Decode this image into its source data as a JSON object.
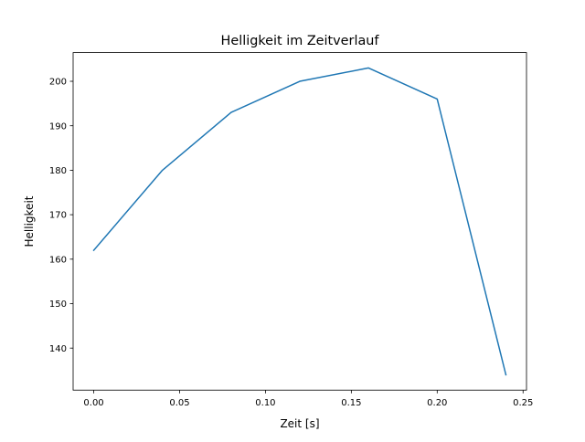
{
  "chart_data": {
    "type": "line",
    "title": "Helligkeit im Zeitverlauf",
    "xlabel": "Zeit [s]",
    "ylabel": "Helligkeit",
    "x": [
      0.0,
      0.04,
      0.08,
      0.12,
      0.16,
      0.2,
      0.24
    ],
    "series": [
      {
        "name": "Helligkeit",
        "values": [
          162,
          180,
          193,
          200,
          203,
          196,
          134
        ],
        "color": "#1f77b4"
      }
    ],
    "xlim": [
      -0.012,
      0.252
    ],
    "ylim": [
      130.55,
      206.45
    ],
    "xticks": [
      0.0,
      0.05,
      0.1,
      0.15,
      0.2,
      0.25
    ],
    "xtick_labels": [
      "0.00",
      "0.05",
      "0.10",
      "0.15",
      "0.20",
      "0.25"
    ],
    "yticks": [
      140,
      150,
      160,
      170,
      180,
      190,
      200
    ],
    "ytick_labels": [
      "140",
      "150",
      "160",
      "170",
      "180",
      "190",
      "200"
    ],
    "grid": false,
    "legend": "none"
  }
}
